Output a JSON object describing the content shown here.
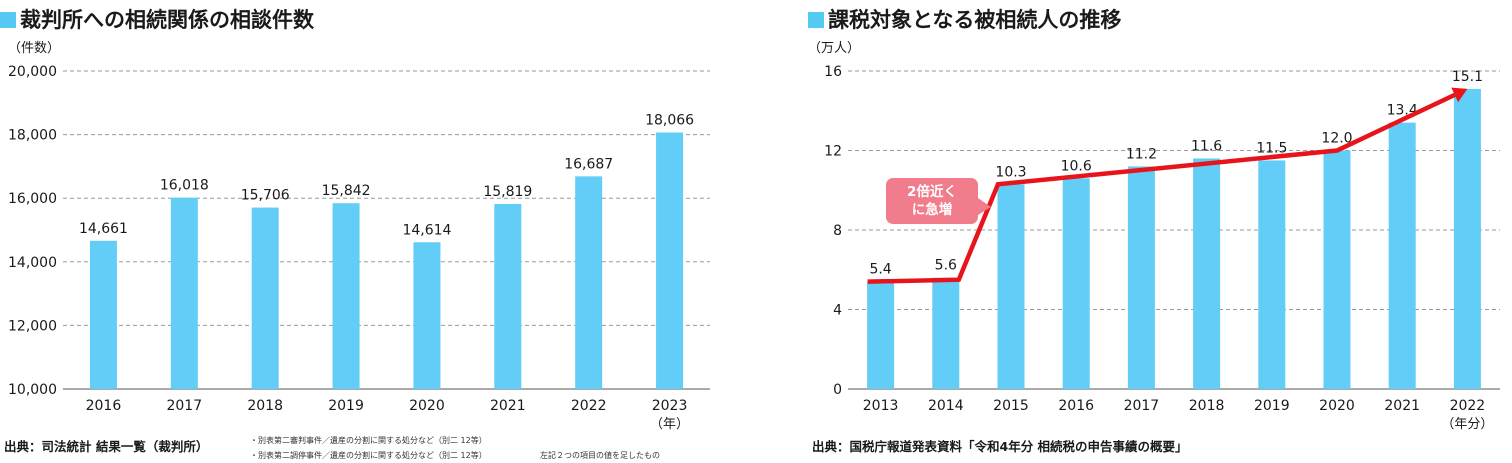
{
  "chart_data": [
    {
      "type": "bar",
      "title": "裁判所への相続関係の相談件数",
      "unit_label": "（件数）",
      "x_unit": "（年）",
      "categories": [
        "2016",
        "2017",
        "2018",
        "2019",
        "2020",
        "2021",
        "2022",
        "2023"
      ],
      "values": [
        14661,
        16018,
        15706,
        15842,
        14614,
        15819,
        16687,
        18066
      ],
      "value_labels": [
        "14,661",
        "16,018",
        "15,706",
        "15,842",
        "14,614",
        "15,819",
        "16,687",
        "18,066"
      ],
      "ylim": [
        10000,
        20000
      ],
      "yticks": [
        10000,
        12000,
        14000,
        16000,
        18000,
        20000
      ],
      "ytick_labels": [
        "10,000",
        "12,000",
        "14,000",
        "16,000",
        "18,000",
        "20,000"
      ],
      "grid": true,
      "bar_color": "#62cdf6",
      "source": "出典：司法統計 結果一覧（裁判所）",
      "notes": [
        "・別表第二審判事件／遺産の分割に関する処分など（別二 12等）",
        "・別表第二調停事件／遺産の分割に関する処分など（別二 12等）",
        "左記２つの項目の値を足したもの"
      ]
    },
    {
      "type": "bar",
      "title": "課税対象となる被相続人の推移",
      "unit_label": "（万人）",
      "x_unit": "（年分）",
      "categories": [
        "2013",
        "2014",
        "2015",
        "2016",
        "2017",
        "2018",
        "2019",
        "2020",
        "2021",
        "2022"
      ],
      "values": [
        5.4,
        5.6,
        10.3,
        10.6,
        11.2,
        11.6,
        11.5,
        12.0,
        13.4,
        15.1
      ],
      "value_labels": [
        "5.4",
        "5.6",
        "10.3",
        "10.6",
        "11.2",
        "11.6",
        "11.5",
        "12.0",
        "13.4",
        "15.1"
      ],
      "ylim": [
        0,
        16
      ],
      "yticks": [
        0,
        4,
        8,
        12,
        16
      ],
      "ytick_labels": [
        "0",
        "4",
        "8",
        "12",
        "16"
      ],
      "grid": true,
      "bar_color": "#62cdf6",
      "trend_line_color": "#e8141c",
      "trend_line_points": [
        [
          2013,
          5.4
        ],
        [
          2014,
          5.5
        ],
        [
          2015,
          10.3
        ],
        [
          2020,
          12.0
        ],
        [
          2022,
          15.1
        ]
      ],
      "callout": {
        "line1": "2倍近く",
        "line2": "に急増",
        "color": "#f07c8c"
      },
      "source": "出典：国税庁報道発表資料「令和4年分 相続税の申告事績の概要」"
    }
  ]
}
